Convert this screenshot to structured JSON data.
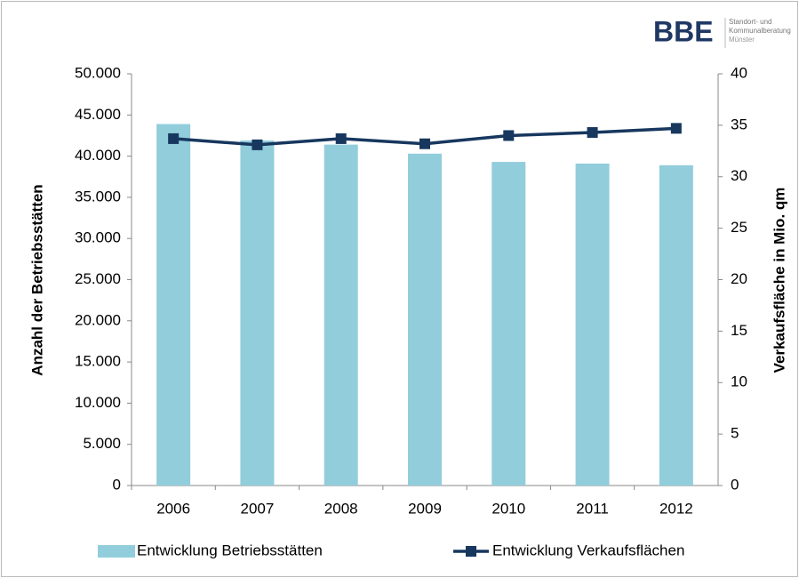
{
  "logo": {
    "name": "BBE",
    "lines": [
      "Standort- und",
      "Kommunalberatung",
      "Münster"
    ]
  },
  "chart_data": {
    "type": "bar",
    "categories": [
      "2006",
      "2007",
      "2008",
      "2009",
      "2010",
      "2011",
      "2012"
    ],
    "ylabel": "Anzahl der Betriebsstätten",
    "y2label": "Verkaufsfläche in Mio. qm",
    "ylim": [
      0,
      50000
    ],
    "yticks": [
      0,
      {
        "value": 5000,
        "label": "5.000"
      },
      {
        "value": 10000,
        "label": "10.000"
      },
      {
        "value": 15000,
        "label": "15.000"
      },
      {
        "value": 20000,
        "label": "20.000"
      },
      {
        "value": 25000,
        "label": "25.000"
      },
      {
        "value": 30000,
        "label": "30.000"
      },
      {
        "value": 35000,
        "label": "35.000"
      },
      {
        "value": 40000,
        "label": "40.000"
      },
      {
        "value": 45000,
        "label": "45.000"
      },
      {
        "value": 50000,
        "label": "50.000"
      }
    ],
    "y2lim": [
      0,
      40
    ],
    "y2ticks": [
      0,
      5,
      10,
      15,
      20,
      25,
      30,
      35,
      40
    ],
    "legend": "bottom",
    "series": [
      {
        "name": "Entwicklung Betriebsstätten",
        "type": "bar",
        "color": "#92cddc",
        "values": [
          43900,
          41900,
          41400,
          40300,
          39300,
          39100,
          38900
        ]
      },
      {
        "name": "Entwicklung Verkaufsflächen",
        "type": "line",
        "axis": "y2",
        "color": "#17375e",
        "values": [
          33.7,
          33.1,
          33.7,
          33.2,
          34.0,
          34.3,
          34.7
        ]
      }
    ]
  }
}
